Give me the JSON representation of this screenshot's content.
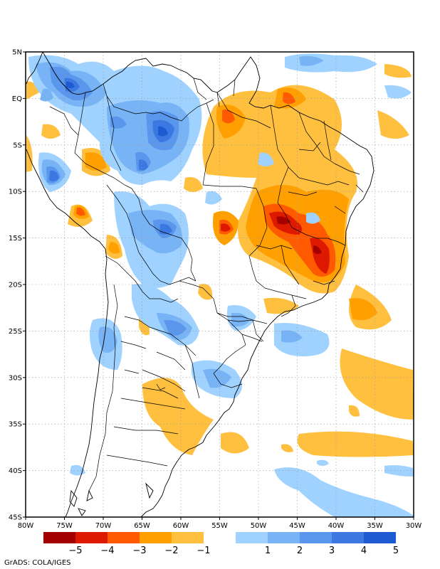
{
  "map": {
    "lon_range": [
      -80,
      -30
    ],
    "lat_range": [
      -45,
      5
    ],
    "lon_ticks": [
      "80W",
      "75W",
      "70W",
      "65W",
      "60W",
      "55W",
      "50W",
      "45W",
      "40W",
      "35W",
      "30W"
    ],
    "lat_ticks": [
      "5N",
      "EQ",
      "5S",
      "10S",
      "15S",
      "20S",
      "25S",
      "30S",
      "35S",
      "40S",
      "45S"
    ],
    "grid": true
  },
  "colorbar": {
    "labels": [
      "−5",
      "−4",
      "−3",
      "−2",
      "−1",
      "1",
      "2",
      "3",
      "4",
      "5"
    ],
    "colors": [
      "#a50000",
      "#dd1a00",
      "#ff5a00",
      "#ffa000",
      "#ffc040",
      "#ffffff",
      "#a0d2ff",
      "#78b4f5",
      "#5a96eb",
      "#3c78e1",
      "#1e5ad2"
    ]
  },
  "credit": "GrADS: COLA/IGES",
  "anomalies": [
    {
      "lon": -77,
      "lat": 2,
      "rx": 3,
      "ry": 3,
      "v": 3
    },
    {
      "lon": -78,
      "lat": 0,
      "rx": 3,
      "ry": 2,
      "v": 2
    },
    {
      "lon": -66,
      "lat": 0,
      "rx": 9,
      "ry": 4,
      "v": 2
    },
    {
      "lon": -62,
      "lat": -3,
      "rx": 5,
      "ry": 4,
      "v": 3
    },
    {
      "lon": -61,
      "lat": -3,
      "rx": 3,
      "ry": 2,
      "v": 4
    },
    {
      "lon": -68,
      "lat": -3,
      "rx": 3,
      "ry": 2,
      "v": 3
    },
    {
      "lon": -64,
      "lat": -7,
      "rx": 2,
      "ry": 2,
      "v": 4
    },
    {
      "lon": -76,
      "lat": -8,
      "rx": 3,
      "ry": 3,
      "v": 3
    },
    {
      "lon": -62,
      "lat": -15,
      "rx": 5,
      "ry": 7,
      "v": 2
    },
    {
      "lon": -61,
      "lat": -14,
      "rx": 3,
      "ry": 2,
      "v": 3
    },
    {
      "lon": -64,
      "lat": -19,
      "rx": 3,
      "ry": 3,
      "v": 1
    },
    {
      "lon": -58,
      "lat": -25,
      "rx": 5,
      "ry": 3,
      "v": 2
    },
    {
      "lon": -70,
      "lat": -26,
      "rx": 3,
      "ry": 3,
      "v": 2
    },
    {
      "lon": -57,
      "lat": -30,
      "rx": 4,
      "ry": 2,
      "v": 2
    },
    {
      "lon": -52,
      "lat": -24,
      "rx": 2,
      "ry": 2,
      "v": 2
    },
    {
      "lon": -48,
      "lat": -27,
      "rx": 4,
      "ry": 2,
      "v": 2
    },
    {
      "lon": -40,
      "lat": -42,
      "rx": 6,
      "ry": 3,
      "v": 1
    },
    {
      "lon": -72,
      "lat": -2,
      "rx": 2,
      "ry": 1,
      "v": 1
    },
    {
      "lon": -36,
      "lat": -1,
      "rx": 2,
      "ry": 1,
      "v": 1
    },
    {
      "lon": -54,
      "lat": -2,
      "rx": 4,
      "ry": 3,
      "v": -2
    },
    {
      "lon": -46,
      "lat": 0,
      "rx": 4,
      "ry": 2,
      "v": -2
    },
    {
      "lon": -43,
      "lat": -4,
      "rx": 3,
      "ry": 3,
      "v": -1
    },
    {
      "lon": -56,
      "lat": -8,
      "rx": 3,
      "ry": 2,
      "v": -1
    },
    {
      "lon": -69,
      "lat": -7,
      "rx": 3,
      "ry": 2,
      "v": -2
    },
    {
      "lon": -73,
      "lat": -12,
      "rx": 2,
      "ry": 2,
      "v": -2
    },
    {
      "lon": -55,
      "lat": -14,
      "rx": 3,
      "ry": 3,
      "v": -2
    },
    {
      "lon": -47,
      "lat": -13,
      "rx": 4,
      "ry": 3,
      "v": -3
    },
    {
      "lon": -46,
      "lat": -14,
      "rx": 3,
      "ry": 2,
      "v": -4
    },
    {
      "lon": -42,
      "lat": -16,
      "rx": 3,
      "ry": 5,
      "v": -3
    },
    {
      "lon": -41,
      "lat": -17,
      "rx": 2,
      "ry": 3,
      "v": -4
    },
    {
      "lon": -44,
      "lat": -16,
      "rx": 6,
      "ry": 6,
      "v": -2
    },
    {
      "lon": -38,
      "lat": -22,
      "rx": 4,
      "ry": 3,
      "v": -2
    },
    {
      "lon": -34,
      "lat": -30,
      "rx": 4,
      "ry": 3,
      "v": -1
    },
    {
      "lon": -63,
      "lat": -33,
      "rx": 4,
      "ry": 3,
      "v": -1
    },
    {
      "lon": -52,
      "lat": -35,
      "rx": 3,
      "ry": 2,
      "v": -1
    },
    {
      "lon": -71,
      "lat": -16,
      "rx": 1,
      "ry": 1,
      "v": -2
    }
  ]
}
